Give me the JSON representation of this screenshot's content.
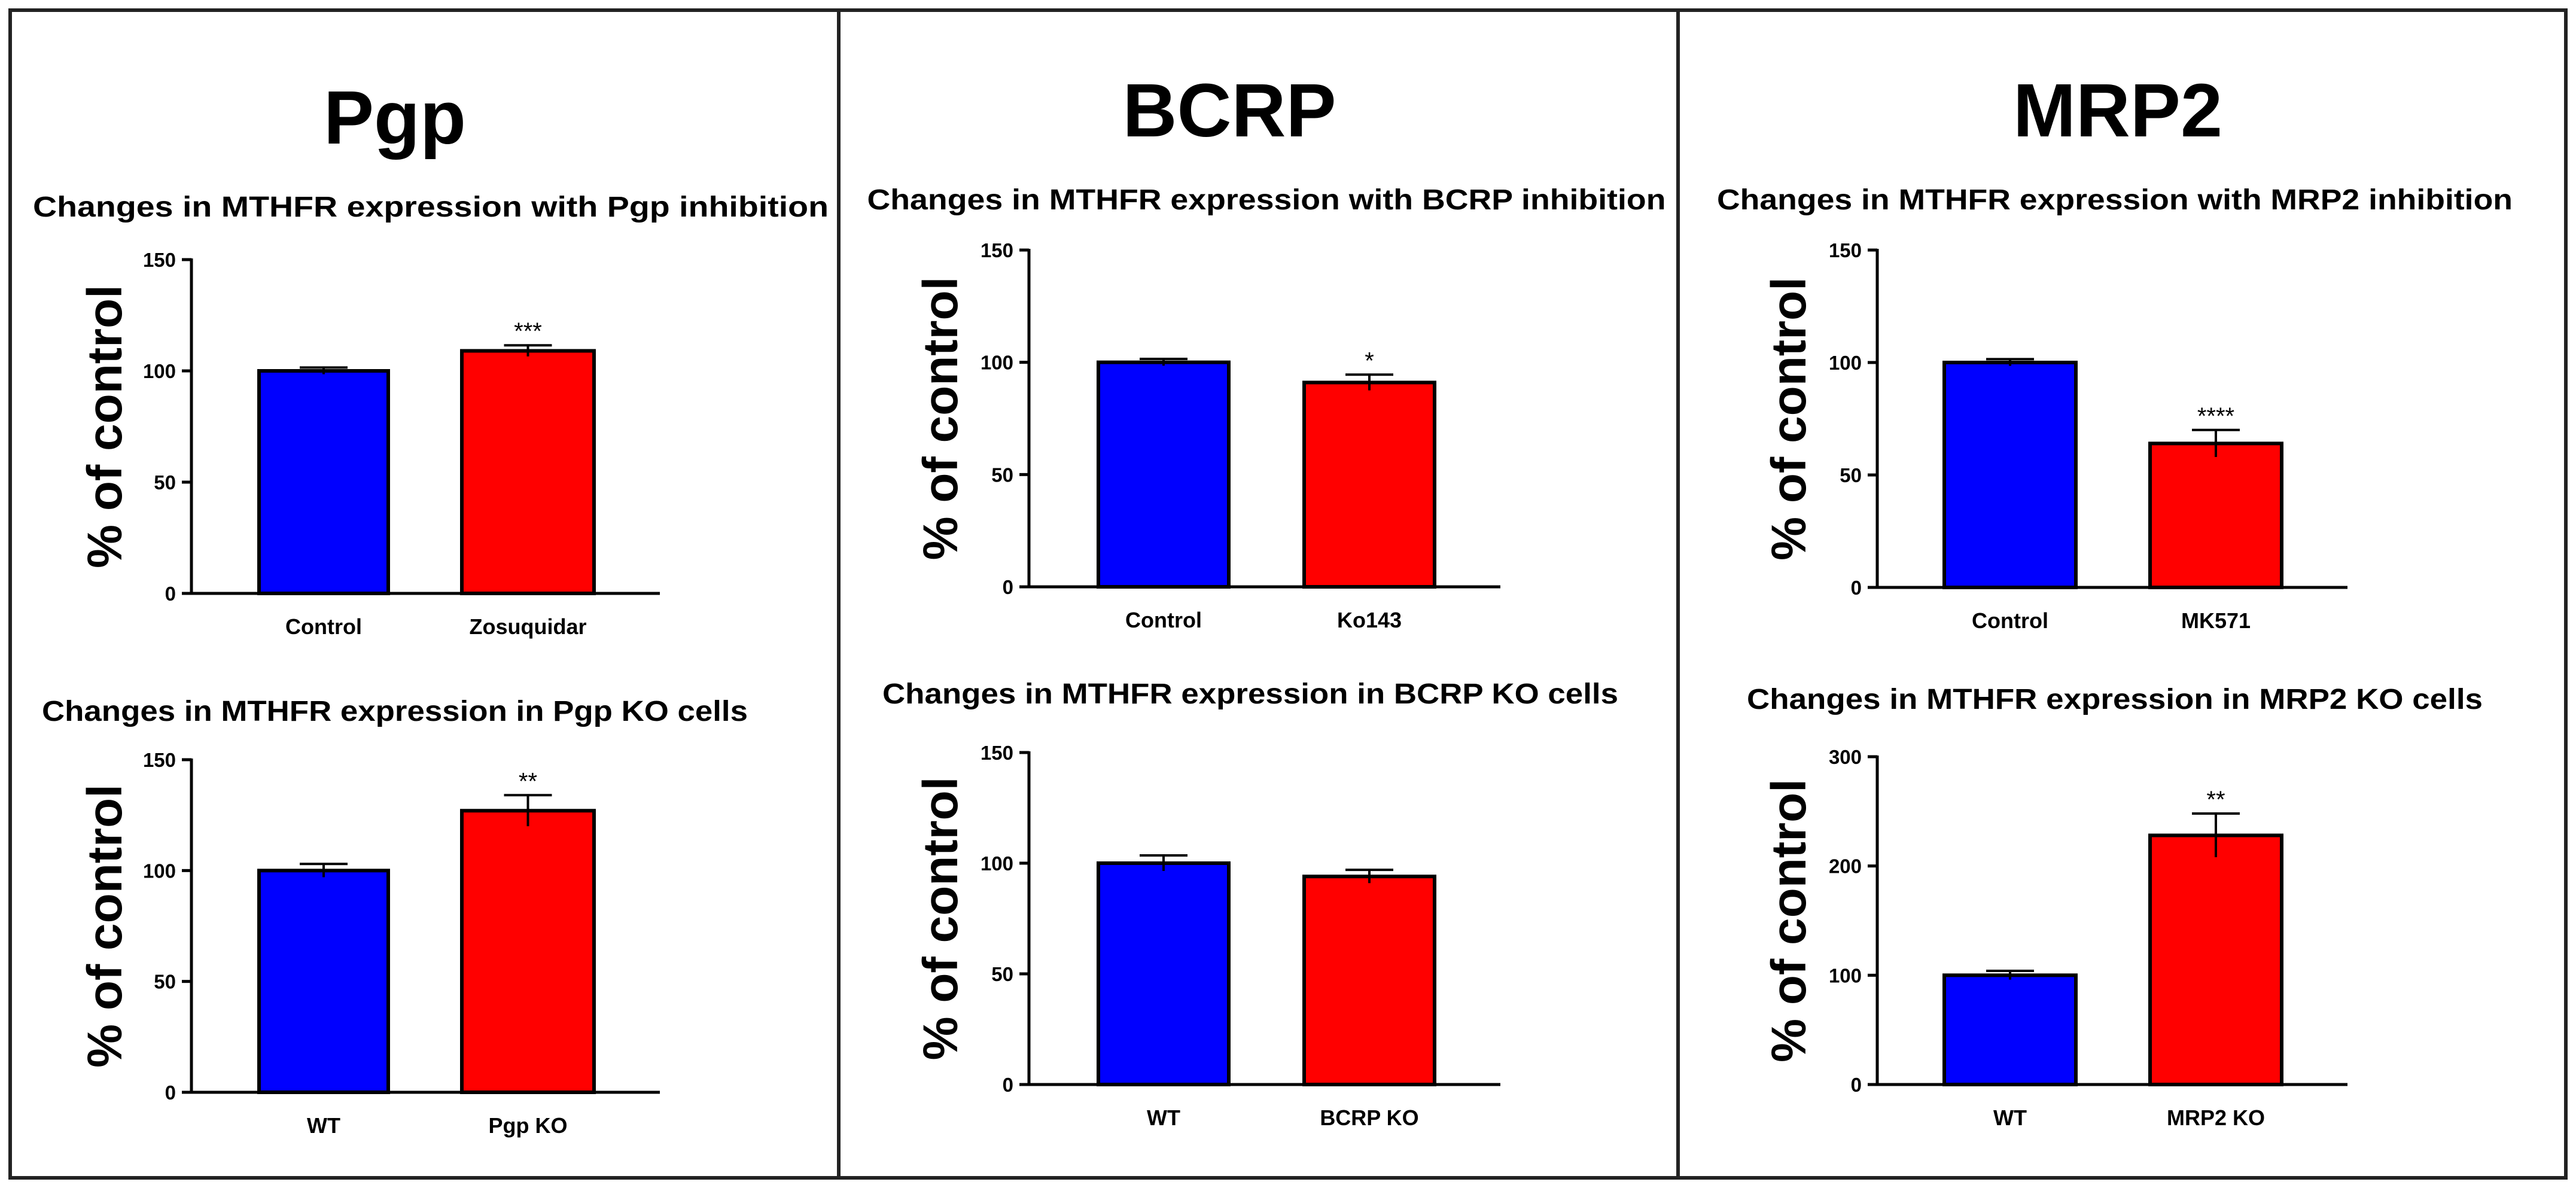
{
  "panels": [
    {
      "title": "Pgp"
    },
    {
      "title": "BCRP"
    },
    {
      "title": "MRP2"
    }
  ],
  "colors": {
    "control": "#0000ff",
    "treatment": "#ff0000",
    "axis": "#000000",
    "border": "#222222"
  },
  "chart_data": [
    {
      "type": "bar",
      "panel": "Pgp",
      "title": "Changes in MTHFR expression with Pgp inhibition",
      "ylabel": "% of control",
      "xlabel": "",
      "ylim": [
        0,
        150
      ],
      "yticks": [
        0,
        50,
        100,
        150
      ],
      "categories": [
        "Control",
        "Zosuquidar"
      ],
      "values": [
        100,
        109
      ],
      "errors": [
        1.5,
        2.5
      ],
      "significance": [
        "",
        "***"
      ]
    },
    {
      "type": "bar",
      "panel": "Pgp",
      "title": "Changes in MTHFR expression in Pgp KO cells",
      "ylabel": "% of control",
      "xlabel": "",
      "ylim": [
        0,
        150
      ],
      "yticks": [
        0,
        50,
        100,
        150
      ],
      "categories": [
        "WT",
        "Pgp KO"
      ],
      "values": [
        100,
        127
      ],
      "errors": [
        3,
        7
      ],
      "significance": [
        "",
        "**"
      ]
    },
    {
      "type": "bar",
      "panel": "BCRP",
      "title": "Changes in MTHFR expression with BCRP inhibition",
      "ylabel": "% of control",
      "xlabel": "",
      "ylim": [
        0,
        150
      ],
      "yticks": [
        0,
        50,
        100,
        150
      ],
      "categories": [
        "Control",
        "Ko143"
      ],
      "values": [
        100,
        91
      ],
      "errors": [
        1.5,
        3.5
      ],
      "significance": [
        "",
        "*"
      ]
    },
    {
      "type": "bar",
      "panel": "BCRP",
      "title": "Changes in MTHFR expression in BCRP KO cells",
      "ylabel": "% of control",
      "xlabel": "",
      "ylim": [
        0,
        150
      ],
      "yticks": [
        0,
        50,
        100,
        150
      ],
      "categories": [
        "WT",
        "BCRP KO"
      ],
      "values": [
        100,
        94
      ],
      "errors": [
        3.5,
        3
      ],
      "significance": [
        "",
        ""
      ]
    },
    {
      "type": "bar",
      "panel": "MRP2",
      "title": "Changes in MTHFR expression with MRP2 inhibition",
      "ylabel": "% of control",
      "xlabel": "",
      "ylim": [
        0,
        150
      ],
      "yticks": [
        0,
        50,
        100,
        150
      ],
      "categories": [
        "Control",
        "MK571"
      ],
      "values": [
        100,
        64
      ],
      "errors": [
        1.5,
        6
      ],
      "significance": [
        "",
        "****"
      ]
    },
    {
      "type": "bar",
      "panel": "MRP2",
      "title": "Changes in MTHFR expression in MRP2 KO cells",
      "ylabel": "% of control",
      "xlabel": "",
      "ylim": [
        0,
        300
      ],
      "yticks": [
        0,
        100,
        200,
        300
      ],
      "categories": [
        "WT",
        "MRP2 KO"
      ],
      "values": [
        100,
        228
      ],
      "errors": [
        4,
        20
      ],
      "significance": [
        "",
        "**"
      ]
    }
  ]
}
